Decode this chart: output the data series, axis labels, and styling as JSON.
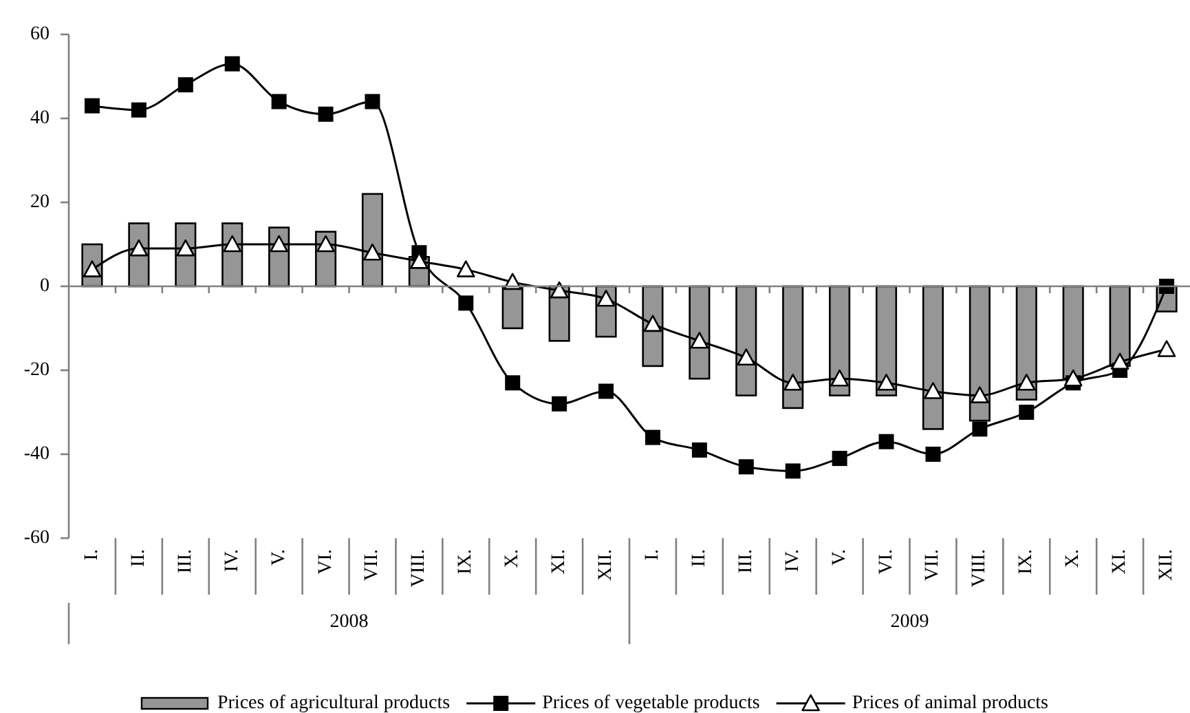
{
  "chart_data": {
    "type": "bar",
    "categories": [
      "I.",
      "II.",
      "III.",
      "IV.",
      "V.",
      "VI.",
      "VII.",
      "VIII.",
      "IX.",
      "X.",
      "XI.",
      "XII.",
      "I.",
      "II.",
      "III.",
      "IV.",
      "V.",
      "VI.",
      "VII.",
      "VIII.",
      "IX.",
      "X.",
      "XI.",
      "XII."
    ],
    "series": [
      {
        "name": "Prices of agricultural products",
        "color": "#969696",
        "values": [
          10,
          15,
          15,
          15,
          14,
          13,
          22,
          7,
          null,
          -10,
          -13,
          -12,
          -19,
          -22,
          -26,
          -29,
          -26,
          -26,
          -34,
          -32,
          -27,
          -22,
          -19,
          -6
        ]
      },
      {
        "name": "Prices of vegetable products",
        "type": "line",
        "color": "#000000",
        "marker": "square",
        "values": [
          43,
          42,
          48,
          53,
          44,
          41,
          44,
          8,
          -4,
          -23,
          -28,
          -25,
          -36,
          -39,
          -43,
          -44,
          -41,
          -37,
          -40,
          -34,
          -30,
          -23,
          -20,
          0
        ]
      },
      {
        "name": "Prices of animal products",
        "type": "line",
        "color": "#000000",
        "marker": "triangle",
        "values": [
          4,
          9,
          9,
          10,
          10,
          10,
          8,
          6,
          4,
          1,
          -1,
          -3,
          -9,
          -13,
          -17,
          -23,
          -22,
          -23,
          -25,
          -26,
          -23,
          -22,
          -18,
          -15
        ]
      }
    ],
    "ylim": [
      -60,
      60
    ],
    "yticks": [
      -60,
      -40,
      -20,
      0,
      20,
      40,
      60
    ],
    "legend": "bottom",
    "annotations": [
      "2008",
      "2009"
    ]
  }
}
